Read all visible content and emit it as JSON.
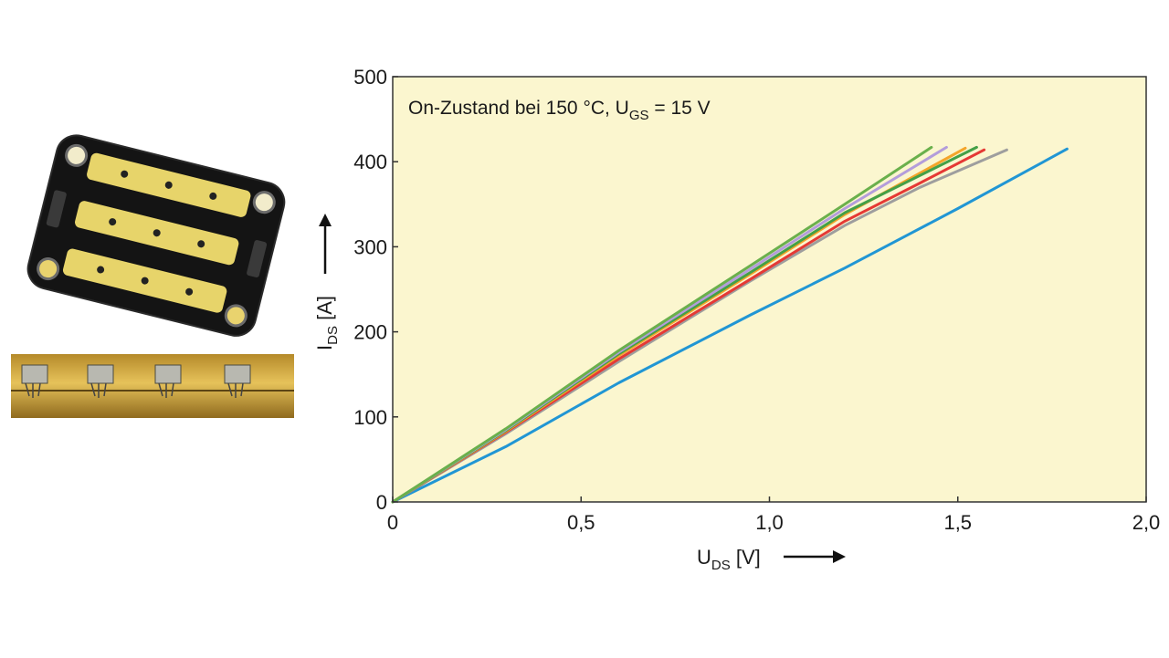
{
  "chart_data": {
    "type": "line",
    "title": "",
    "annotation": {
      "prefix": "On-Zustand bei 150 °C, U",
      "sub": "GS",
      "suffix": " = 15 V"
    },
    "xlabel": {
      "main": "U",
      "sub": "DS",
      "unit": " [V]"
    },
    "ylabel": {
      "main": "I",
      "sub": "DS",
      "unit": " [A]"
    },
    "xlim": [
      0,
      2.0
    ],
    "ylim": [
      0,
      500
    ],
    "x_ticks": [
      "0",
      "0,5",
      "1,0",
      "1,5",
      "2,0"
    ],
    "y_ticks": [
      "0",
      "100",
      "200",
      "300",
      "400",
      "500"
    ],
    "x_tick_values": [
      0,
      0.5,
      1.0,
      1.5,
      2.0
    ],
    "y_tick_values": [
      0,
      100,
      200,
      300,
      400,
      500
    ],
    "grid": false,
    "background": "#fbf6cf",
    "series": [
      {
        "color": "#2196d4",
        "x": [
          0,
          0.3,
          0.6,
          0.95,
          1.2,
          1.5,
          1.79
        ],
        "y": [
          0,
          65,
          140,
          220,
          275,
          345,
          415
        ]
      },
      {
        "color": "#9e9e9e",
        "x": [
          0,
          0.3,
          0.6,
          0.95,
          1.2,
          1.4,
          1.63
        ],
        "y": [
          0,
          80,
          165,
          260,
          325,
          370,
          414
        ]
      },
      {
        "color": "#e53935",
        "x": [
          0,
          0.3,
          0.6,
          0.95,
          1.2,
          1.4,
          1.57
        ],
        "y": [
          0,
          82,
          168,
          262,
          330,
          375,
          414
        ]
      },
      {
        "color": "#f4a52a",
        "x": [
          0,
          0.3,
          0.6,
          0.95,
          1.2,
          1.52
        ],
        "y": [
          0,
          83,
          172,
          268,
          338,
          416
        ]
      },
      {
        "color": "#43a047",
        "x": [
          0,
          0.3,
          0.6,
          0.95,
          1.2,
          1.55
        ],
        "y": [
          0,
          84,
          174,
          270,
          340,
          417
        ]
      },
      {
        "color": "#b39ddb",
        "x": [
          0,
          0.3,
          0.6,
          0.95,
          1.2,
          1.47
        ],
        "y": [
          0,
          85,
          176,
          274,
          345,
          417
        ]
      },
      {
        "color": "#6ab04c",
        "x": [
          0,
          0.3,
          0.6,
          0.95,
          1.2,
          1.43
        ],
        "y": [
          0,
          86,
          178,
          278,
          350,
          417
        ]
      }
    ]
  }
}
